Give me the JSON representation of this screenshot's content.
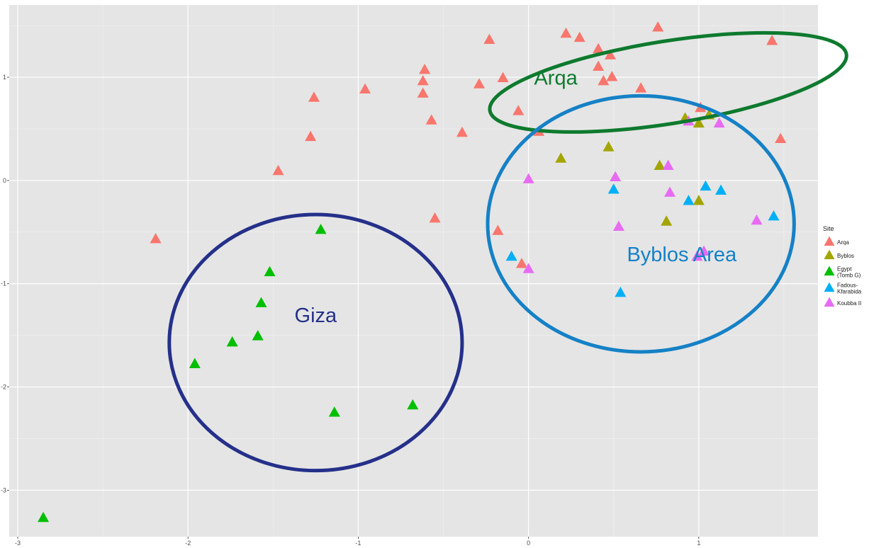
{
  "chart_data": {
    "type": "scatter",
    "title": "",
    "xlabel": "",
    "ylabel": "",
    "xlim": [
      -3.05,
      1.7
    ],
    "ylim": [
      -3.45,
      1.7
    ],
    "x_ticks": [
      -3,
      -2,
      -1,
      0,
      1
    ],
    "x_tick_labels": [
      "-3",
      "-2",
      "-1",
      "0",
      "1"
    ],
    "y_ticks": [
      -3,
      -2,
      -1,
      0,
      1
    ],
    "y_tick_labels": [
      "-3",
      "-2",
      "-1",
      "0",
      "1"
    ],
    "grid": true,
    "marker": "triangle",
    "legend": {
      "title": "Site",
      "position": "right",
      "entries": [
        {
          "label": "Arqa",
          "lines": [
            "Arqa"
          ],
          "color": "#f8766d"
        },
        {
          "label": "Byblos",
          "lines": [
            "Byblos"
          ],
          "color": "#a3a500"
        },
        {
          "label": "Egypt (Tomb G)",
          "lines": [
            "Egypt",
            "(Tomb G)"
          ],
          "color": "#00bf00"
        },
        {
          "label": "Fadous-Kfarabida",
          "lines": [
            "Fadous-",
            "Kfarabida"
          ],
          "color": "#00b0f6"
        },
        {
          "label": "Koubba II",
          "lines": [
            "Koubba II"
          ],
          "color": "#e76bf3"
        }
      ]
    },
    "series": [
      {
        "name": "Arqa",
        "color": "#f8766d",
        "points": [
          [
            0.76,
            1.48
          ],
          [
            0.22,
            1.42
          ],
          [
            -0.23,
            1.36
          ],
          [
            0.3,
            1.38
          ],
          [
            1.43,
            1.35
          ],
          [
            0.41,
            1.27
          ],
          [
            0.48,
            1.21
          ],
          [
            0.41,
            1.1
          ],
          [
            0.49,
            1.0
          ],
          [
            0.44,
            0.96
          ],
          [
            -0.61,
            1.07
          ],
          [
            -0.62,
            0.96
          ],
          [
            -0.62,
            0.84
          ],
          [
            -0.96,
            0.88
          ],
          [
            -0.29,
            0.93
          ],
          [
            -0.15,
            0.99
          ],
          [
            0.66,
            0.89
          ],
          [
            -1.26,
            0.8
          ],
          [
            -0.06,
            0.67
          ],
          [
            -0.57,
            0.58
          ],
          [
            -0.39,
            0.46
          ],
          [
            0.06,
            0.47
          ],
          [
            1.01,
            0.7
          ],
          [
            1.48,
            0.4
          ],
          [
            -1.28,
            0.42
          ],
          [
            -1.47,
            0.09
          ],
          [
            -0.55,
            -0.37
          ],
          [
            -2.19,
            -0.57
          ],
          [
            -0.18,
            -0.49
          ],
          [
            -0.04,
            -0.81
          ]
        ]
      },
      {
        "name": "Byblos",
        "color": "#a3a500",
        "points": [
          [
            0.92,
            0.6
          ],
          [
            1.06,
            0.63
          ],
          [
            1.0,
            0.55
          ],
          [
            0.47,
            0.32
          ],
          [
            0.19,
            0.21
          ],
          [
            0.77,
            0.14
          ],
          [
            1.0,
            -0.2
          ],
          [
            0.81,
            -0.4
          ]
        ]
      },
      {
        "name": "Egypt (Tomb G)",
        "color": "#00bf00",
        "points": [
          [
            -1.22,
            -0.48
          ],
          [
            -1.52,
            -0.89
          ],
          [
            -1.57,
            -1.19
          ],
          [
            -1.59,
            -1.51
          ],
          [
            -1.74,
            -1.57
          ],
          [
            -1.96,
            -1.78
          ],
          [
            -1.14,
            -2.25
          ],
          [
            -0.68,
            -2.18
          ],
          [
            -2.85,
            -3.27
          ]
        ]
      },
      {
        "name": "Fadous-Kfarabida",
        "color": "#00b0f6",
        "points": [
          [
            1.04,
            -0.06
          ],
          [
            1.13,
            -0.1
          ],
          [
            0.5,
            -0.09
          ],
          [
            0.94,
            -0.2
          ],
          [
            1.44,
            -0.35
          ],
          [
            -0.1,
            -0.74
          ],
          [
            0.54,
            -1.09
          ]
        ]
      },
      {
        "name": "Koubba II",
        "color": "#e76bf3",
        "points": [
          [
            0.94,
            0.57
          ],
          [
            1.12,
            0.55
          ],
          [
            0.82,
            0.14
          ],
          [
            0.51,
            0.03
          ],
          [
            0.0,
            0.01
          ],
          [
            0.83,
            -0.12
          ],
          [
            0.53,
            -0.45
          ],
          [
            1.34,
            -0.39
          ],
          [
            1.03,
            -0.69
          ],
          [
            0.99,
            -0.74
          ],
          [
            0.0,
            -0.86
          ]
        ]
      }
    ],
    "annotations": [
      {
        "label": "Arqa",
        "color": "#0e7a2e",
        "center": [
          0.82,
          0.95
        ],
        "radii": [
          1.06,
          0.4
        ],
        "angle_deg": 9,
        "text_pos": [
          0.16,
          0.98
        ]
      },
      {
        "label": "Byblos Area",
        "color": "#1581c6",
        "center": [
          0.66,
          -0.42
        ],
        "radii": [
          0.9,
          1.24
        ],
        "angle_deg": 0,
        "text_pos": [
          0.9,
          -0.73
        ]
      },
      {
        "label": "Giza",
        "color": "#25308a",
        "center": [
          -1.25,
          -1.57
        ],
        "radii": [
          0.86,
          1.24
        ],
        "angle_deg": 0,
        "text_pos": [
          -1.25,
          -1.32
        ]
      }
    ]
  }
}
